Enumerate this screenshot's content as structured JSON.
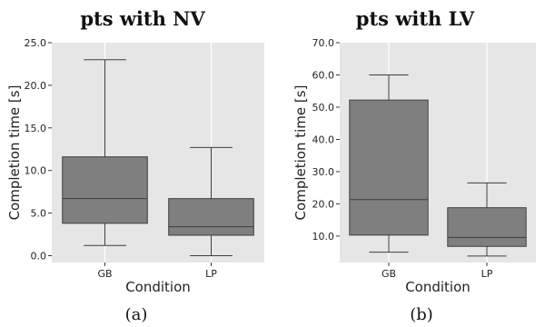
{
  "chart_data": [
    {
      "type": "box",
      "title": "pts with NV",
      "caption": "(a)",
      "xlabel": "Condition",
      "ylabel": "Completion time [s]",
      "ylim": [
        -0.8,
        25.0
      ],
      "yticks": [
        0.0,
        5.0,
        10.0,
        15.0,
        20.0,
        25.0
      ],
      "ytick_labels": [
        "0.0",
        "5.0",
        "10.0",
        "15.0",
        "20.0",
        "25.0"
      ],
      "categories": [
        "GB",
        "LP"
      ],
      "grid": "vertical",
      "box_color": "#7f7f7f",
      "boxes": [
        {
          "category": "GB",
          "whisker_low": 1.2,
          "q1": 3.8,
          "median": 6.7,
          "q3": 11.6,
          "whisker_high": 23.0
        },
        {
          "category": "LP",
          "whisker_low": 0.0,
          "q1": 2.4,
          "median": 3.4,
          "q3": 6.7,
          "whisker_high": 12.7
        }
      ]
    },
    {
      "type": "box",
      "title": "pts with LV",
      "caption": "(b)",
      "xlabel": "Condition",
      "ylabel": "Completion time [s]",
      "ylim": [
        1.8,
        70.0
      ],
      "yticks": [
        10.0,
        20.0,
        30.0,
        40.0,
        50.0,
        60.0,
        70.0
      ],
      "ytick_labels": [
        "10.0",
        "20.0",
        "30.0",
        "40.0",
        "50.0",
        "60.0",
        "70.0"
      ],
      "categories": [
        "GB",
        "LP"
      ],
      "grid": "vertical",
      "box_color": "#7f7f7f",
      "boxes": [
        {
          "category": "GB",
          "whisker_low": 5.0,
          "q1": 10.3,
          "median": 21.3,
          "q3": 52.2,
          "whisker_high": 60.0
        },
        {
          "category": "LP",
          "whisker_low": 3.8,
          "q1": 6.8,
          "median": 9.6,
          "q3": 18.8,
          "whisker_high": 26.5
        }
      ]
    }
  ]
}
